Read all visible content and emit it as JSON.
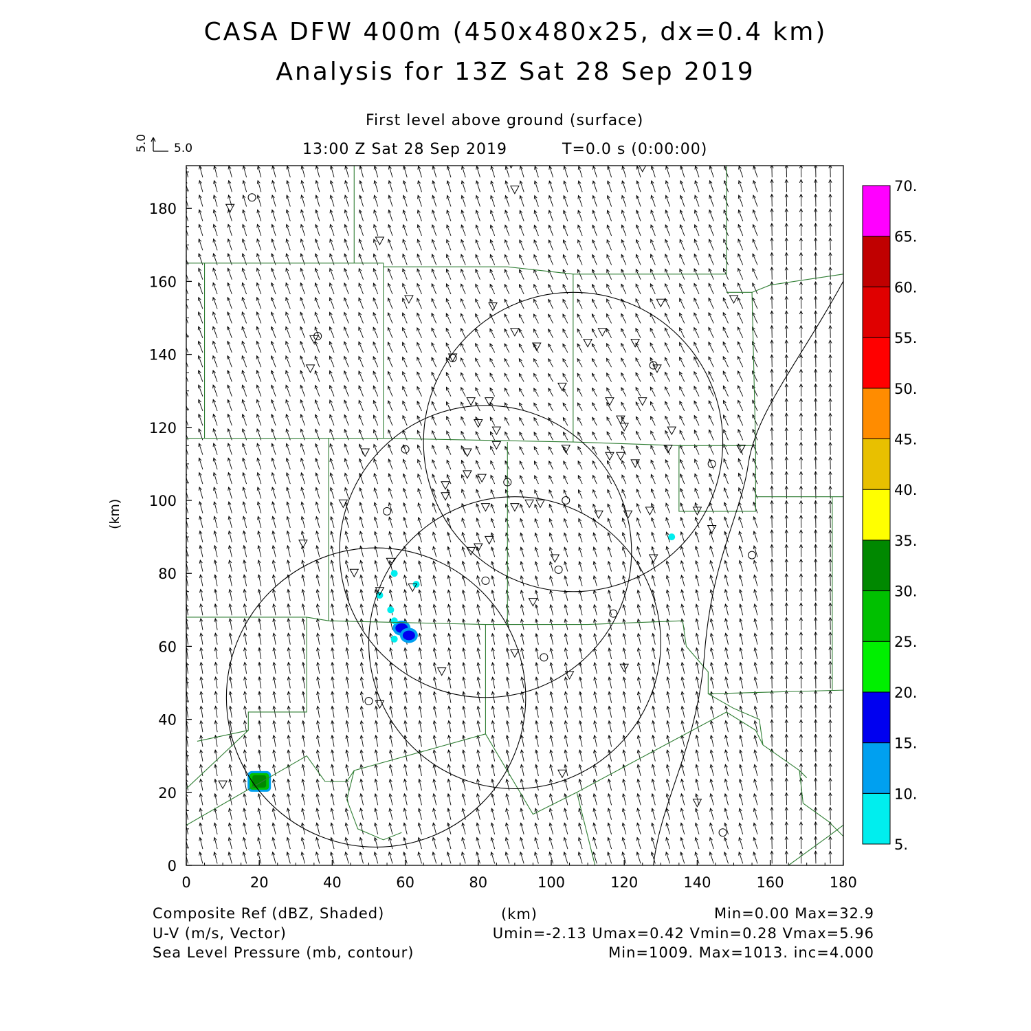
{
  "header": {
    "title_line1": "CASA DFW 400m (450x480x25, dx=0.4 km)",
    "title_line2": "Analysis for 13Z Sat 28 Sep 2019",
    "level": "First level above ground (surface)",
    "valid_time": "13:00 Z Sat 28 Sep 2019",
    "forecast_time": "T=0.0 s (0:00:00)",
    "ref_vector_x": "5.0",
    "ref_vector_y": "5.0"
  },
  "axes": {
    "x_unit": "(km)",
    "y_unit": "(km)",
    "x_ticks": [
      0,
      20,
      40,
      60,
      80,
      100,
      120,
      140,
      160,
      180
    ],
    "y_ticks": [
      0,
      20,
      40,
      60,
      80,
      100,
      120,
      140,
      160,
      180
    ],
    "xlim": [
      0,
      180
    ],
    "ylim": [
      0,
      192
    ]
  },
  "colorbar": {
    "labels": [
      "5.",
      "10.",
      "15.",
      "20.",
      "25.",
      "30.",
      "35.",
      "40.",
      "45.",
      "50.",
      "55.",
      "60.",
      "65.",
      "70."
    ],
    "colors": [
      "#00eeee",
      "#00a0f0",
      "#0000f0",
      "#00f000",
      "#00c000",
      "#008800",
      "#ffff00",
      "#e8c000",
      "#ff8c00",
      "#ff0000",
      "#e00000",
      "#c00000",
      "#ff00ff"
    ]
  },
  "footer": {
    "left": [
      "Composite Ref (dBZ, Shaded)",
      "U-V (m/s, Vector)",
      "Sea Level Pressure (mb, contour)"
    ],
    "center": "(km)",
    "right": [
      "Min=0.00 Max=32.9",
      "Umin=-2.13 Umax=0.42 Vmin=0.28 Vmax=5.96",
      "Min=1009. Max=1013. inc=4.000"
    ]
  },
  "chart_data": {
    "type": "map",
    "colors": {
      "boundary": "#2e7d32",
      "contour": "#000000",
      "vector": "#000000"
    },
    "radar_range_rings": [
      {
        "center_km": [
          52,
          46
        ],
        "radius_km": 41
      },
      {
        "center_km": [
          82,
          86
        ],
        "radius_km": 40
      },
      {
        "center_km": [
          106,
          116
        ],
        "radius_km": 41
      },
      {
        "center_km": [
          90,
          61
        ],
        "radius_km": 40
      }
    ],
    "reflectivity_echoes": [
      {
        "center_km": [
          20,
          23
        ],
        "dbz": 30
      },
      {
        "center_km": [
          59,
          65
        ],
        "dbz": 17
      },
      {
        "center_km": [
          61,
          63
        ],
        "dbz": 15
      },
      {
        "center_km": [
          57,
          80
        ],
        "dbz": 7
      },
      {
        "center_km": [
          63,
          77
        ],
        "dbz": 8
      },
      {
        "center_km": [
          53,
          74
        ],
        "dbz": 7
      },
      {
        "center_km": [
          56,
          70
        ],
        "dbz": 6
      },
      {
        "center_km": [
          57,
          67
        ],
        "dbz": 6
      },
      {
        "center_km": [
          57,
          62
        ],
        "dbz": 6
      },
      {
        "center_km": [
          133,
          90
        ],
        "dbz": 6
      }
    ],
    "triangle_stations_km": [
      [
        12,
        180
      ],
      [
        53,
        171
      ],
      [
        61,
        155
      ],
      [
        84,
        153
      ],
      [
        90,
        146
      ],
      [
        96,
        142
      ],
      [
        73,
        139
      ],
      [
        35,
        144
      ],
      [
        34,
        136
      ],
      [
        114,
        146
      ],
      [
        123,
        143
      ],
      [
        110,
        143
      ],
      [
        130,
        154
      ],
      [
        129,
        136
      ],
      [
        103,
        131
      ],
      [
        125,
        127
      ],
      [
        116,
        127
      ],
      [
        133,
        119
      ],
      [
        120,
        120
      ],
      [
        119,
        122
      ],
      [
        83,
        127
      ],
      [
        78,
        127
      ],
      [
        80,
        121
      ],
      [
        85,
        119
      ],
      [
        85,
        115
      ],
      [
        104,
        114
      ],
      [
        119,
        112
      ],
      [
        116,
        112
      ],
      [
        123,
        110
      ],
      [
        132,
        114
      ],
      [
        77,
        113
      ],
      [
        77,
        107
      ],
      [
        81,
        106
      ],
      [
        71,
        104
      ],
      [
        71,
        101
      ],
      [
        49,
        113
      ],
      [
        43,
        99
      ],
      [
        82,
        98
      ],
      [
        90,
        98
      ],
      [
        94,
        99
      ],
      [
        97,
        99
      ],
      [
        113,
        96
      ],
      [
        121,
        96
      ],
      [
        127,
        97
      ],
      [
        140,
        97
      ],
      [
        144,
        92
      ],
      [
        32,
        88
      ],
      [
        78,
        86
      ],
      [
        80,
        87
      ],
      [
        83,
        89
      ],
      [
        101,
        84
      ],
      [
        128,
        84
      ],
      [
        46,
        80
      ],
      [
        56,
        83
      ],
      [
        62,
        76
      ],
      [
        53,
        75
      ],
      [
        95,
        72
      ],
      [
        90,
        58
      ],
      [
        70,
        53
      ],
      [
        105,
        52
      ],
      [
        120,
        54
      ],
      [
        53,
        44
      ],
      [
        10,
        22
      ],
      [
        103,
        25
      ],
      [
        140,
        17
      ],
      [
        89,
        192
      ],
      [
        90,
        185
      ],
      [
        125,
        191
      ],
      [
        150,
        155
      ],
      [
        152,
        114
      ]
    ],
    "circle_stations_km": [
      [
        18,
        183
      ],
      [
        36,
        145
      ],
      [
        73,
        139
      ],
      [
        128,
        137
      ],
      [
        60,
        114
      ],
      [
        88,
        105
      ],
      [
        55,
        97
      ],
      [
        104,
        100
      ],
      [
        144,
        110
      ],
      [
        102,
        81
      ],
      [
        82,
        78
      ],
      [
        155,
        85
      ],
      [
        117,
        69
      ],
      [
        98,
        57
      ],
      [
        50,
        45
      ],
      [
        147,
        9
      ]
    ],
    "wind_vectors": {
      "grid_spacing_km": 4,
      "ref_speed_ms": 5.0,
      "u_ms_range": [
        -2.13,
        0.42
      ],
      "v_ms_range": [
        0.28,
        5.96
      ],
      "dominant_direction": "from south-southeast"
    }
  }
}
